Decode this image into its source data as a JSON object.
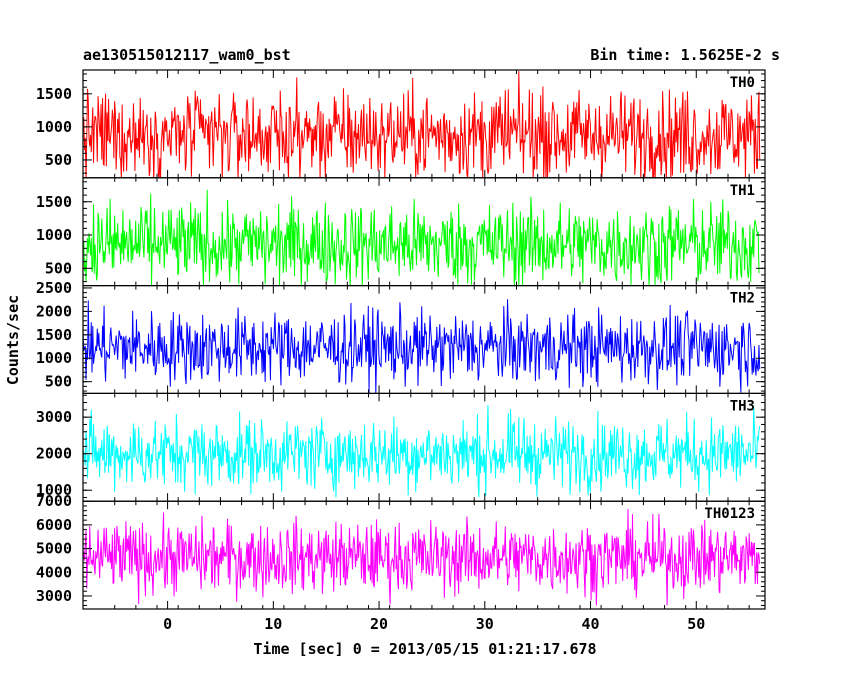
{
  "header": {
    "left_title": "ae130515012117_wam0_bst",
    "right_title": "Bin time: 1.5625E-2 s"
  },
  "chart_data": {
    "type": "line",
    "xlabel": "Time [sec] 0 = 2013/05/15 01:21:17.678",
    "ylabel": "Counts/sec",
    "xlim": [
      -8,
      56.5
    ],
    "x_data_range": [
      -8,
      56
    ],
    "x_ticks": [
      0,
      10,
      20,
      30,
      40,
      50
    ],
    "x_tick_labels": [
      "0",
      "10",
      "20",
      "30",
      "40",
      "50"
    ],
    "grid": false,
    "panels": [
      {
        "name": "TH0",
        "color": "#ff0000",
        "ylim": [
          230,
          1860
        ],
        "yticks": [
          500,
          1000,
          1500
        ],
        "ytick_labels": [
          "500",
          "1000",
          "1500"
        ],
        "base": 880,
        "spread": 330,
        "min": 160,
        "max": 1860
      },
      {
        "name": "TH1",
        "color": "#00ff00",
        "ylim": [
          240,
          1860
        ],
        "yticks": [
          500,
          1000,
          1500
        ],
        "ytick_labels": [
          "500",
          "1000",
          "1500"
        ],
        "base": 860,
        "spread": 310,
        "min": 180,
        "max": 1820
      },
      {
        "name": "TH2",
        "color": "#0000ff",
        "ylim": [
          250,
          2550
        ],
        "yticks": [
          500,
          1000,
          1500,
          2000,
          2500
        ],
        "ytick_labels": [
          "500",
          "1000",
          "1500",
          "2000",
          "2500"
        ],
        "base": 1230,
        "spread": 380,
        "min": 230,
        "max": 2500
      },
      {
        "name": "TH3",
        "color": "#00ffff",
        "ylim": [
          700,
          3650
        ],
        "yticks": [
          1000,
          2000,
          3000
        ],
        "ytick_labels": [
          "1000",
          "2000",
          "3000"
        ],
        "base": 2000,
        "spread": 480,
        "min": 800,
        "max": 3600
      },
      {
        "name": "TH0123",
        "color": "#ff00ff",
        "ylim": [
          2450,
          7000
        ],
        "yticks": [
          3000,
          4000,
          5000,
          6000,
          7000
        ],
        "ytick_labels": [
          "3000",
          "4000",
          "5000",
          "6000",
          "7000"
        ],
        "base": 4620,
        "spread": 750,
        "min": 2500,
        "max": 7000
      }
    ]
  }
}
